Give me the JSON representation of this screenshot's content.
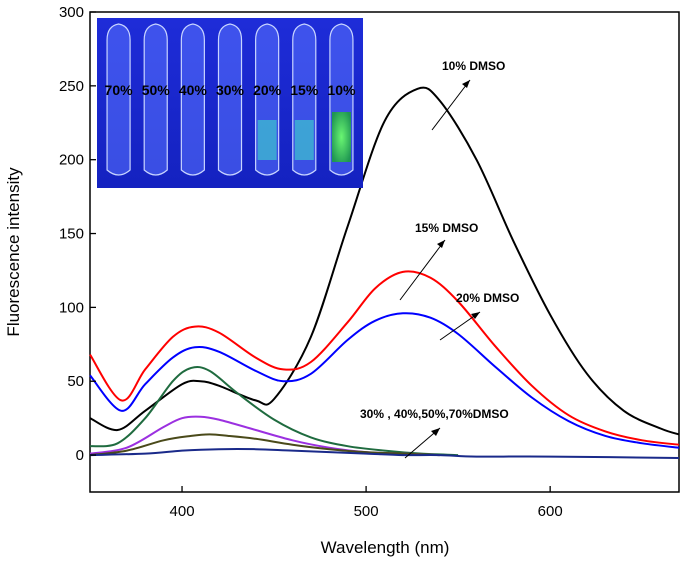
{
  "chart_data": {
    "type": "line",
    "xlabel": "Wavelength (nm)",
    "ylabel": "Fluorescence intensity",
    "xlim": [
      350,
      670
    ],
    "ylim": [
      -25,
      300
    ],
    "xticks": [
      400,
      500,
      600
    ],
    "yticks": [
      0,
      50,
      100,
      150,
      200,
      250,
      300
    ],
    "grid": false,
    "series": [
      {
        "name": "10% DMSO",
        "color": "#000000",
        "x": [
          350,
          365,
          380,
          400,
          410,
          420,
          440,
          450,
          470,
          490,
          510,
          528,
          540,
          560,
          580,
          600,
          620,
          640,
          660,
          670
        ],
        "y": [
          25,
          17,
          30,
          48,
          50,
          47,
          37,
          38,
          80,
          155,
          226,
          248,
          240,
          200,
          145,
          95,
          55,
          30,
          18,
          14
        ]
      },
      {
        "name": "15% DMSO",
        "color": "#ff0000",
        "x": [
          350,
          367,
          380,
          395,
          407,
          420,
          440,
          455,
          470,
          490,
          505,
          520,
          535,
          550,
          570,
          590,
          610,
          630,
          650,
          670
        ],
        "y": [
          68,
          37,
          58,
          80,
          87,
          83,
          66,
          58,
          63,
          90,
          113,
          124,
          120,
          104,
          74,
          47,
          27,
          16,
          10,
          7
        ]
      },
      {
        "name": "20% DMSO",
        "color": "#0000ff",
        "x": [
          350,
          367,
          380,
          395,
          407,
          420,
          440,
          455,
          470,
          490,
          505,
          520,
          535,
          550,
          570,
          590,
          610,
          630,
          650,
          670
        ],
        "y": [
          54,
          30,
          48,
          66,
          73,
          70,
          57,
          50,
          55,
          78,
          91,
          96,
          93,
          82,
          60,
          39,
          23,
          13,
          8,
          5
        ]
      },
      {
        "color": "#1f6b3f",
        "x": [
          350,
          365,
          380,
          395,
          405,
          415,
          430,
          450,
          470,
          490,
          510,
          530,
          550
        ],
        "y": [
          6,
          8,
          25,
          50,
          59,
          57,
          42,
          24,
          12,
          6,
          3,
          1,
          0
        ]
      },
      {
        "color": "#9b30e0",
        "x": [
          350,
          370,
          390,
          400,
          410,
          420,
          440,
          460,
          480,
          500,
          520,
          540
        ],
        "y": [
          1,
          5,
          19,
          25,
          26,
          24,
          17,
          10,
          5,
          2,
          1,
          0
        ]
      },
      {
        "color": "#4a4a1a",
        "x": [
          350,
          370,
          390,
          405,
          415,
          425,
          440,
          460,
          480,
          500,
          520,
          540
        ],
        "y": [
          0,
          3,
          10,
          13,
          14,
          13,
          11,
          7,
          4,
          2,
          1,
          0
        ]
      },
      {
        "color": "#1a2a8a",
        "x": [
          350,
          380,
          400,
          420,
          440,
          460,
          480,
          500,
          520,
          540,
          560,
          600,
          670
        ],
        "y": [
          0,
          1,
          3,
          4,
          4,
          3,
          2,
          1,
          0,
          0,
          -1,
          -1,
          -2
        ]
      }
    ],
    "annotations": [
      "10% DMSO",
      "15% DMSO",
      "20% DMSO",
      "30% , 40%,50%,70%DMSO"
    ],
    "inset_labels": [
      "70%",
      "50%",
      "40%",
      "30%",
      "20%",
      "15%",
      "10%"
    ]
  }
}
